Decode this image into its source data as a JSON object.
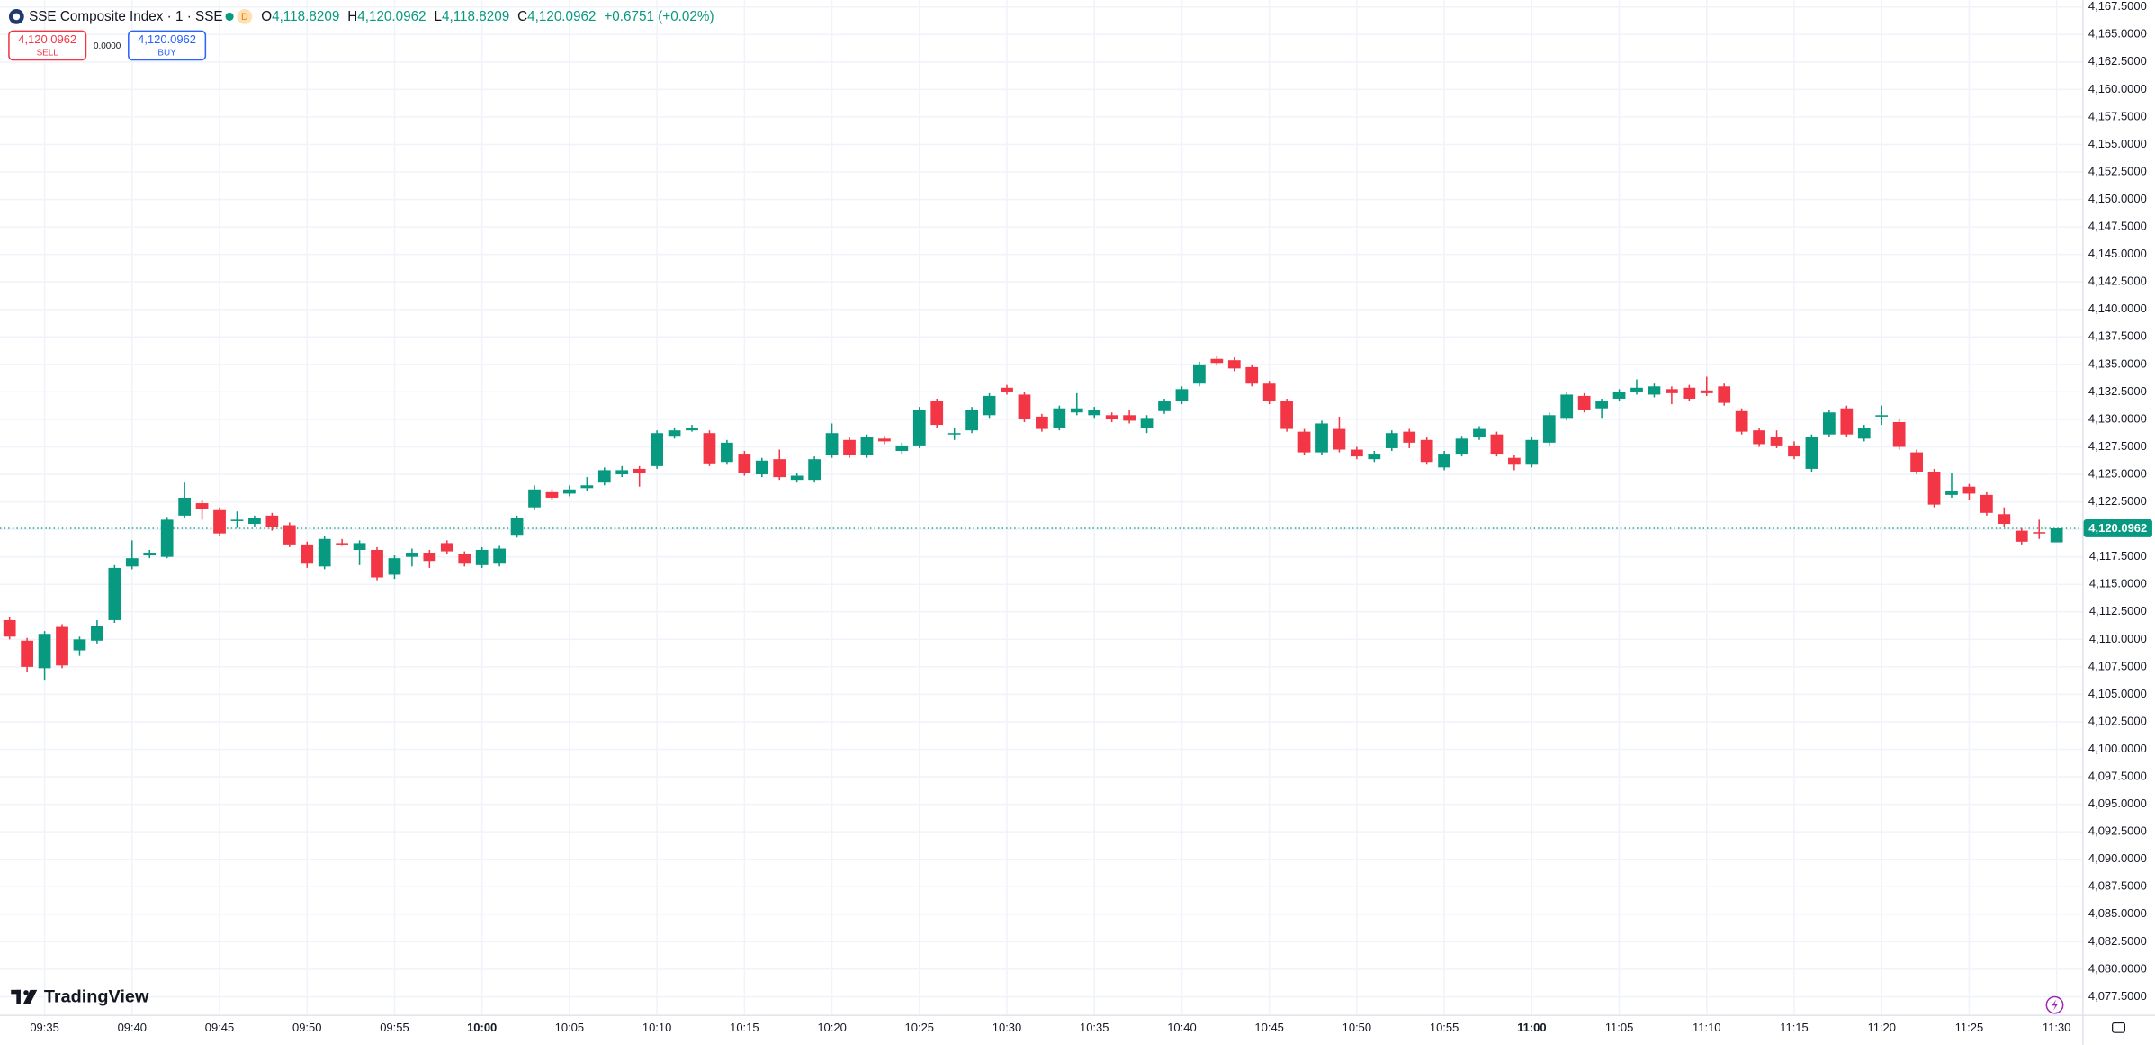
{
  "ui": {
    "symbol": "SSE Composite Index · 1 · SSE",
    "interval_badge": "D",
    "ohlc": [
      {
        "key": "O",
        "value": "4,118.8209"
      },
      {
        "key": "H",
        "value": "4,120.0962"
      },
      {
        "key": "L",
        "value": "4,118.8209"
      },
      {
        "key": "C",
        "value": "4,120.0962"
      }
    ],
    "change": "+0.6751 (+0.02%)",
    "sell": {
      "price": "4,120.0962",
      "label": "SELL"
    },
    "spread": "0.0000",
    "buy": {
      "price": "4,120.0962",
      "label": "BUY"
    },
    "brand": "TradingView"
  },
  "chart_data": {
    "type": "candlestick",
    "up_color": "#089981",
    "down_color": "#f23645",
    "grid": true,
    "categories": [
      null,
      null,
      "09:35",
      null,
      null,
      null,
      null,
      "09:40",
      null,
      null,
      null,
      null,
      "09:45",
      null,
      null,
      null,
      null,
      "09:50",
      null,
      null,
      null,
      null,
      "09:55",
      null,
      null,
      null,
      null,
      "10:00",
      null,
      null,
      null,
      null,
      "10:05",
      null,
      null,
      null,
      null,
      "10:10",
      null,
      null,
      null,
      null,
      "10:15",
      null,
      null,
      null,
      null,
      "10:20",
      null,
      null,
      null,
      null,
      "10:25",
      null,
      null,
      null,
      null,
      "10:30",
      null,
      null,
      null,
      null,
      "10:35",
      null,
      null,
      null,
      null,
      "10:40",
      null,
      null,
      null,
      null,
      "10:45",
      null,
      null,
      null,
      null,
      "10:50",
      null,
      null,
      null,
      null,
      "10:55",
      null,
      null,
      null,
      null,
      "11:00",
      null,
      null,
      null,
      null,
      "11:05",
      null,
      null,
      null,
      null,
      "11:10",
      null,
      null,
      null,
      null,
      "11:15",
      null,
      null,
      null,
      null,
      "11:20",
      null,
      null,
      null,
      null,
      "11:25",
      null,
      null,
      null,
      null,
      "11:30"
    ],
    "open": [
      4111.75,
      4109.88,
      4107.38,
      4111.13,
      4109.0,
      4109.88,
      4111.75,
      4116.63,
      4117.63,
      4117.5,
      4121.25,
      4122.38,
      4121.75,
      4120.75,
      4120.5,
      4121.25,
      4120.38,
      4118.63,
      4116.63,
      4118.75,
      4118.13,
      4118.13,
      4115.88,
      4117.5,
      4117.88,
      4118.75,
      4117.75,
      4116.75,
      4116.88,
      4119.5,
      4122.0,
      4123.38,
      4123.25,
      4123.75,
      4124.25,
      4125.0,
      4125.5,
      4125.75,
      4128.5,
      4129.0,
      4128.75,
      4126.13,
      4126.88,
      4125.0,
      4126.38,
      4124.5,
      4124.5,
      4126.75,
      4128.13,
      4126.75,
      4128.25,
      4127.13,
      4127.63,
      4131.63,
      4128.63,
      4129.0,
      4130.38,
      4132.88,
      4132.25,
      4130.25,
      4129.25,
      4130.63,
      4130.38,
      4130.38,
      4130.38,
      4129.25,
      4130.75,
      4131.63,
      4133.25,
      4135.5,
      4135.38,
      4134.75,
      4133.25,
      4131.63,
      4128.88,
      4127.0,
      4129.13,
      4127.25,
      4126.38,
      4127.38,
      4128.88,
      4128.13,
      4125.63,
      4126.88,
      4128.38,
      4128.63,
      4126.5,
      4125.88,
      4127.88,
      4130.13,
      4132.13,
      4131.0,
      4131.88,
      4132.5,
      4132.25,
      4132.75,
      4132.88,
      4132.63,
      4133.0,
      4130.75,
      4129.0,
      4128.38,
      4127.63,
      4125.5,
      4128.63,
      4131.0,
      4128.25,
      4130.25,
      4129.75,
      4127.0,
      4125.25,
      4123.13,
      4123.88,
      4123.13,
      4121.38,
      4119.88,
      4119.75,
      4118.8209
    ],
    "high": [
      4112.0,
      4110.13,
      4110.75,
      4111.38,
      4110.25,
      4111.75,
      4116.75,
      4119.0,
      4118.13,
      4121.13,
      4124.25,
      4122.63,
      4122.0,
      4121.63,
      4121.25,
      4121.5,
      4120.63,
      4118.88,
      4119.38,
      4119.13,
      4119.0,
      4118.38,
      4117.63,
      4118.25,
      4118.13,
      4119.0,
      4118.0,
      4118.38,
      4118.5,
      4121.25,
      4124.0,
      4123.63,
      4124.0,
      4124.75,
      4125.63,
      4125.75,
      4125.75,
      4129.0,
      4129.25,
      4129.5,
      4129.0,
      4128.13,
      4127.13,
      4126.5,
      4127.25,
      4125.13,
      4126.63,
      4129.63,
      4128.38,
      4128.63,
      4128.5,
      4127.88,
      4131.13,
      4131.88,
      4129.25,
      4131.13,
      4132.38,
      4133.13,
      4132.5,
      4130.5,
      4131.25,
      4132.38,
      4131.13,
      4130.63,
      4130.88,
      4130.38,
      4131.88,
      4133.0,
      4135.25,
      4135.75,
      4135.63,
      4135.0,
      4133.5,
      4131.88,
      4129.13,
      4129.88,
      4130.25,
      4127.5,
      4127.13,
      4129.0,
      4129.13,
      4128.38,
      4127.13,
      4128.5,
      4129.38,
      4128.88,
      4126.75,
      4128.38,
      4130.63,
      4132.5,
      4132.38,
      4131.88,
      4132.75,
      4133.63,
      4133.25,
      4133.0,
      4133.13,
      4133.88,
      4133.25,
      4131.0,
      4129.25,
      4129.0,
      4128.0,
      4128.63,
      4130.88,
      4131.25,
      4129.5,
      4131.25,
      4130.0,
      4127.25,
      4125.5,
      4125.13,
      4124.13,
      4123.38,
      4122.0,
      4120.13,
      4120.88,
      4120.0962
    ],
    "low": [
      4110.0,
      4107.0,
      4106.25,
      4107.38,
      4108.5,
      4109.63,
      4111.5,
      4116.38,
      4117.38,
      4117.38,
      4121.0,
      4120.88,
      4119.38,
      4120.13,
      4120.25,
      4119.88,
      4118.38,
      4116.5,
      4116.38,
      4118.5,
      4116.75,
      4115.38,
      4115.5,
      4116.63,
      4116.5,
      4117.75,
      4116.63,
      4116.5,
      4116.63,
      4119.25,
      4121.75,
      4122.63,
      4123.0,
      4123.5,
      4124.0,
      4124.75,
      4123.88,
      4125.5,
      4128.25,
      4128.88,
      4125.75,
      4125.88,
      4124.88,
      4124.75,
      4124.5,
      4124.25,
      4124.25,
      4126.5,
      4126.5,
      4126.5,
      4127.75,
      4126.88,
      4127.38,
      4129.25,
      4128.13,
      4128.75,
      4130.13,
      4132.25,
      4129.75,
      4128.88,
      4129.0,
      4130.38,
      4130.13,
      4129.75,
      4129.63,
      4128.75,
      4130.5,
      4131.38,
      4133.0,
      4134.88,
      4134.38,
      4133.0,
      4131.38,
      4128.88,
      4126.75,
      4126.75,
      4127.0,
      4126.38,
      4126.13,
      4127.13,
      4127.38,
      4125.88,
      4125.38,
      4126.63,
      4128.13,
      4126.63,
      4125.38,
      4125.63,
      4127.63,
      4129.88,
      4130.63,
      4130.13,
      4131.63,
      4132.25,
      4132.0,
      4131.38,
      4131.63,
      4132.13,
      4131.25,
      4128.63,
      4127.5,
      4127.38,
      4126.38,
      4125.25,
      4128.38,
      4128.38,
      4128.0,
      4129.5,
      4127.25,
      4125.0,
      4122.0,
      4122.88,
      4122.63,
      4121.25,
      4120.25,
      4118.63,
      4119.13,
      4118.8209
    ],
    "close": [
      4110.25,
      4107.5,
      4110.5,
      4107.63,
      4110.0,
      4111.25,
      4116.5,
      4117.38,
      4117.88,
      4120.88,
      4122.88,
      4121.88,
      4119.63,
      4120.88,
      4121.0,
      4120.25,
      4118.63,
      4116.88,
      4119.13,
      4118.63,
      4118.75,
      4115.63,
      4117.38,
      4117.88,
      4117.13,
      4118.0,
      4116.88,
      4118.13,
      4118.25,
      4121.0,
      4123.63,
      4122.88,
      4123.63,
      4124.0,
      4125.38,
      4125.38,
      4125.13,
      4128.75,
      4129.0,
      4129.25,
      4126.0,
      4127.88,
      4125.13,
      4126.25,
      4124.75,
      4124.88,
      4126.38,
      4128.75,
      4126.75,
      4128.38,
      4128.0,
      4127.63,
      4130.88,
      4129.5,
      4128.75,
      4130.88,
      4132.13,
      4132.5,
      4130.0,
      4129.13,
      4131.0,
      4131.0,
      4130.88,
      4130.0,
      4129.88,
      4130.13,
      4131.63,
      4132.75,
      4135.0,
      4135.13,
      4134.63,
      4133.25,
      4131.63,
      4129.13,
      4127.0,
      4129.63,
      4127.25,
      4126.63,
      4126.88,
      4128.75,
      4127.88,
      4126.13,
      4126.88,
      4128.25,
      4129.13,
      4126.88,
      4125.88,
      4128.13,
      4130.38,
      4132.25,
      4130.88,
      4131.63,
      4132.5,
      4132.88,
      4133.0,
      4132.38,
      4131.88,
      4132.38,
      4131.5,
      4128.88,
      4127.75,
      4127.63,
      4126.63,
      4128.38,
      4130.63,
      4128.63,
      4129.25,
      4130.38,
      4127.5,
      4125.25,
      4122.25,
      4123.5,
      4123.25,
      4121.5,
      4120.5,
      4118.88,
      4119.63,
      4120.0962
    ],
    "ylim": [
      4075.875,
      4168.125
    ],
    "yticks": [
      {
        "value": 4077.5,
        "label": "4,077.5000"
      },
      {
        "value": 4080,
        "label": "4,080.0000"
      },
      {
        "value": 4082.5,
        "label": "4,082.5000"
      },
      {
        "value": 4085,
        "label": "4,085.0000"
      },
      {
        "value": 4087.5,
        "label": "4,087.5000"
      },
      {
        "value": 4090,
        "label": "4,090.0000"
      },
      {
        "value": 4092.5,
        "label": "4,092.5000"
      },
      {
        "value": 4095,
        "label": "4,095.0000"
      },
      {
        "value": 4097.5,
        "label": "4,097.5000"
      },
      {
        "value": 4100,
        "label": "4,100.0000"
      },
      {
        "value": 4102.5,
        "label": "4,102.5000"
      },
      {
        "value": 4105,
        "label": "4,105.0000"
      },
      {
        "value": 4107.5,
        "label": "4,107.5000"
      },
      {
        "value": 4110,
        "label": "4,110.0000"
      },
      {
        "value": 4112.5,
        "label": "4,112.5000"
      },
      {
        "value": 4115,
        "label": "4,115.0000"
      },
      {
        "value": 4117.5,
        "label": "4,117.5000"
      },
      {
        "value": 4120,
        "label": "4,120.0000"
      },
      {
        "value": 4122.5,
        "label": "4,122.5000"
      },
      {
        "value": 4125,
        "label": "4,125.0000"
      },
      {
        "value": 4127.5,
        "label": "4,127.5000"
      },
      {
        "value": 4130,
        "label": "4,130.0000"
      },
      {
        "value": 4132.5,
        "label": "4,132.5000"
      },
      {
        "value": 4135,
        "label": "4,135.0000"
      },
      {
        "value": 4137.5,
        "label": "4,137.5000"
      },
      {
        "value": 4140,
        "label": "4,140.0000"
      },
      {
        "value": 4142.5,
        "label": "4,142.5000"
      },
      {
        "value": 4145,
        "label": "4,145.0000"
      },
      {
        "value": 4147.5,
        "label": "4,147.5000"
      },
      {
        "value": 4150,
        "label": "4,150.0000"
      },
      {
        "value": 4152.5,
        "label": "4,152.5000"
      },
      {
        "value": 4155,
        "label": "4,155.0000"
      },
      {
        "value": 4157.5,
        "label": "4,157.5000"
      },
      {
        "value": 4160,
        "label": "4,160.0000"
      },
      {
        "value": 4162.5,
        "label": "4,162.5000"
      },
      {
        "value": 4165,
        "label": "4,165.0000"
      },
      {
        "value": 4167.5,
        "label": "4,167.5000"
      }
    ],
    "last_price": {
      "value": 4120.0962,
      "label": "4,120.0962"
    }
  }
}
